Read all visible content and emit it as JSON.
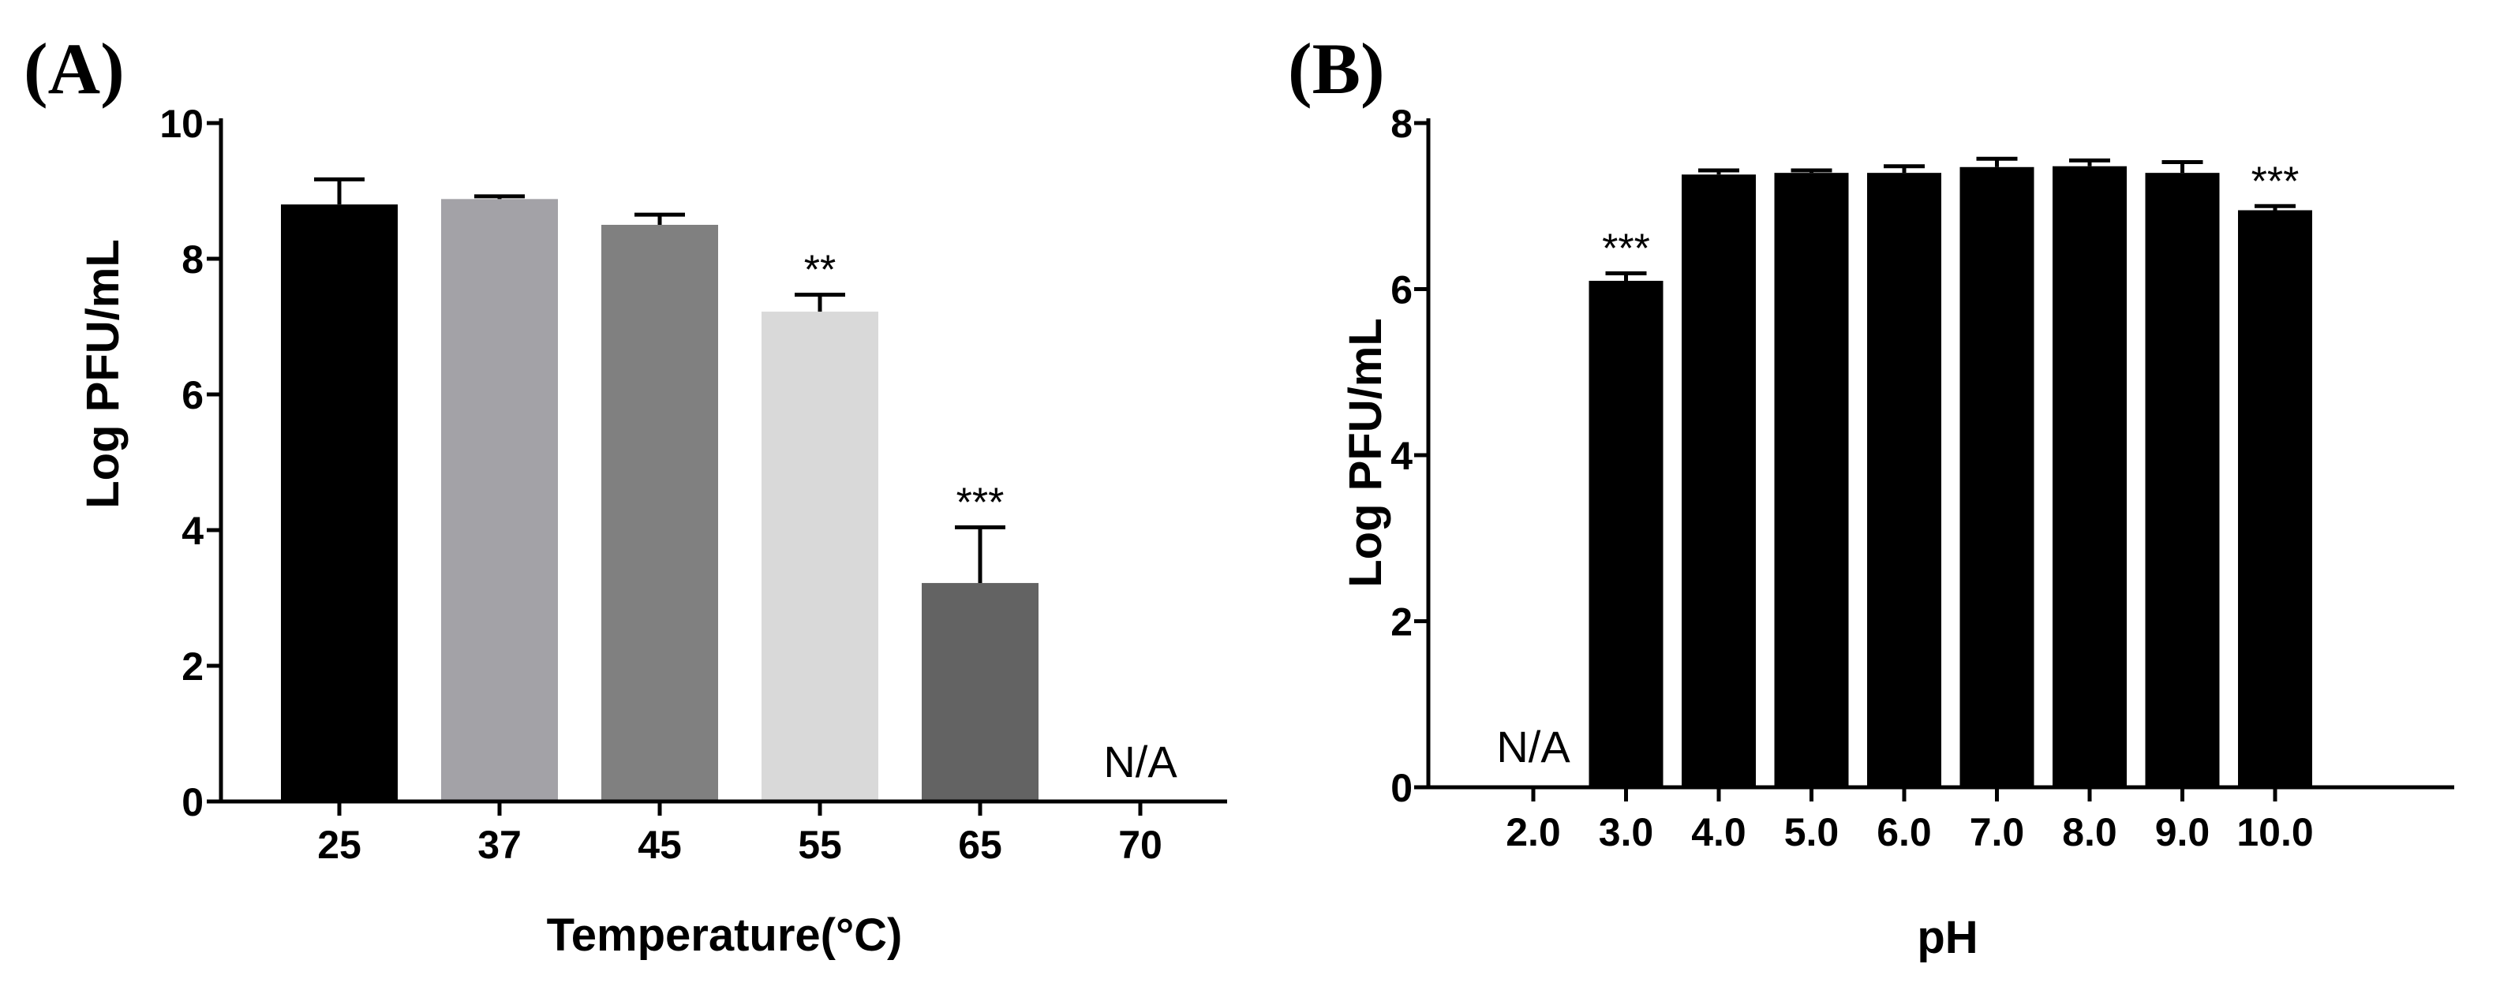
{
  "chart_data": [
    {
      "type": "bar",
      "panel_label": "(A)",
      "title": "",
      "xlabel": "Temperature(°C)",
      "ylabel": "Log PFU/mL",
      "ylim": [
        0,
        10
      ],
      "yticks": [
        0,
        2,
        4,
        6,
        8,
        10
      ],
      "categories": [
        "25",
        "37",
        "45",
        "55",
        "65",
        "70"
      ],
      "values": [
        8.8,
        8.88,
        8.5,
        7.22,
        3.22,
        null
      ],
      "errors": [
        0.37,
        0.04,
        0.15,
        0.25,
        0.82,
        null
      ],
      "bar_colors": [
        "#000000",
        "#a3a2a7",
        "#808080",
        "#d9d9d9",
        "#636363",
        "#ffffff"
      ],
      "annotations": [
        "",
        "",
        "",
        "**",
        "***",
        "N/A"
      ]
    },
    {
      "type": "bar",
      "panel_label": "(B)",
      "title": "",
      "xlabel": "pH",
      "ylabel": "Log PFU/mL",
      "ylim": [
        0,
        8
      ],
      "yticks": [
        0,
        2,
        4,
        6,
        8
      ],
      "categories": [
        "2.0",
        "3.0",
        "4.0",
        "5.0",
        "6.0",
        "7.0",
        "8.0",
        "9.0",
        "10.0"
      ],
      "values": [
        null,
        6.1,
        7.38,
        7.4,
        7.4,
        7.47,
        7.48,
        7.4,
        6.95
      ],
      "errors": [
        null,
        0.09,
        0.05,
        0.03,
        0.08,
        0.1,
        0.07,
        0.13,
        0.05
      ],
      "bar_colors": [
        "#000000",
        "#000000",
        "#000000",
        "#000000",
        "#000000",
        "#000000",
        "#000000",
        "#000000",
        "#000000"
      ],
      "annotations": [
        "N/A",
        "***",
        "",
        "",
        "",
        "",
        "",
        "",
        "***"
      ]
    }
  ]
}
